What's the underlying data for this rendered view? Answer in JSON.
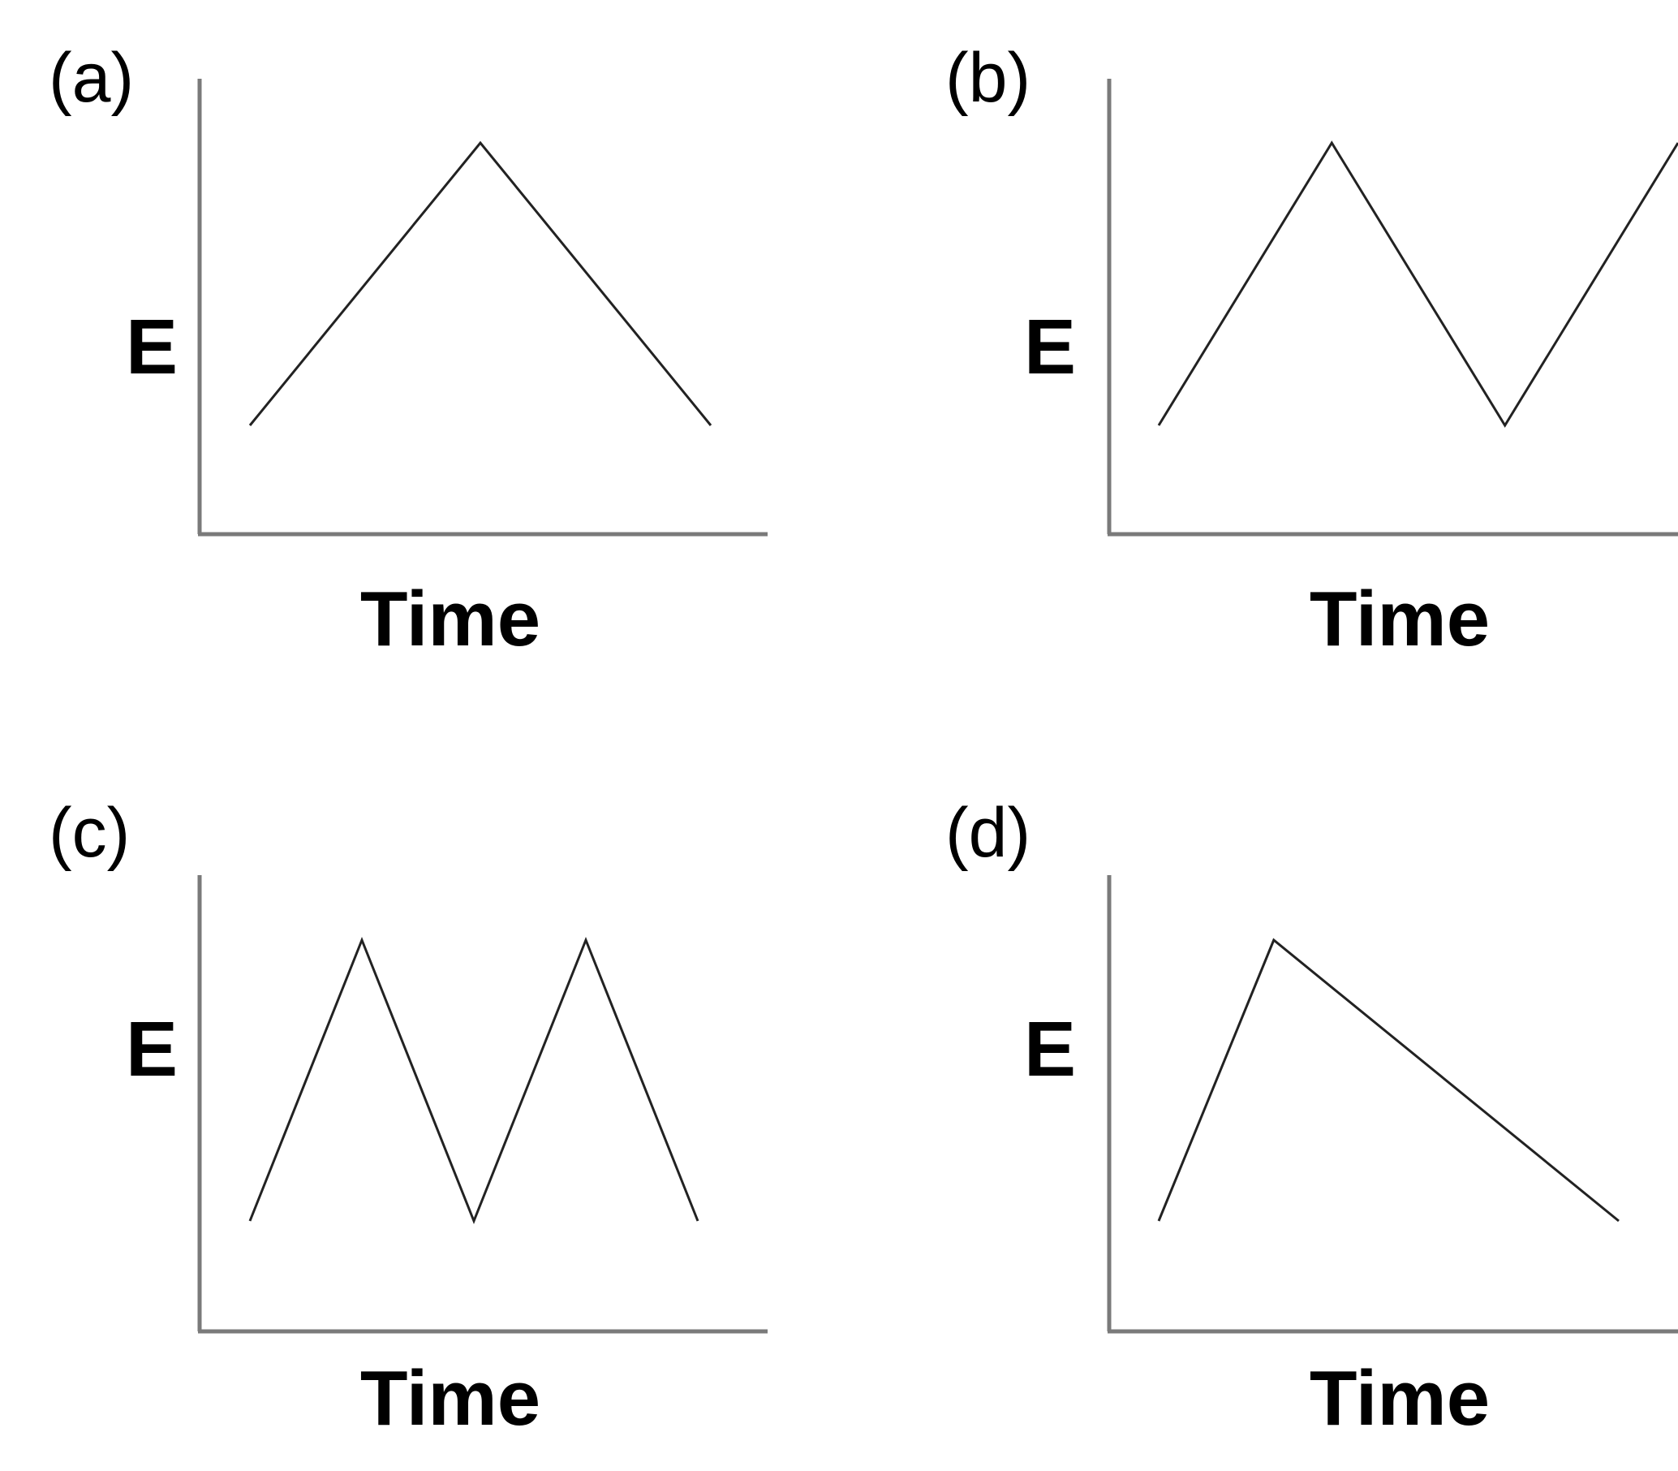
{
  "chart_data": [
    {
      "panel": "(a)",
      "type": "line",
      "xlabel": "Time",
      "ylabel": "E",
      "x": [
        0,
        1,
        2
      ],
      "y": [
        0,
        1,
        0
      ],
      "xlim": [
        0,
        2
      ],
      "ylim": [
        0,
        1
      ]
    },
    {
      "panel": "(b)",
      "type": "line",
      "xlabel": "Time",
      "ylabel": "E",
      "x": [
        0,
        1,
        2,
        3
      ],
      "y": [
        0,
        1,
        0,
        1
      ],
      "xlim": [
        0,
        3
      ],
      "ylim": [
        0,
        1
      ]
    },
    {
      "panel": "(c)",
      "type": "line",
      "xlabel": "Time",
      "ylabel": "E",
      "x": [
        0,
        1,
        2,
        3,
        4
      ],
      "y": [
        0,
        1,
        0,
        1,
        0
      ],
      "xlim": [
        0,
        4
      ],
      "ylim": [
        0,
        1
      ]
    },
    {
      "panel": "(d)",
      "type": "line",
      "xlabel": "Time",
      "ylabel": "E",
      "x": [
        0,
        1,
        4
      ],
      "y": [
        0,
        1,
        0
      ],
      "xlim": [
        0,
        4
      ],
      "ylim": [
        0,
        1
      ]
    }
  ]
}
